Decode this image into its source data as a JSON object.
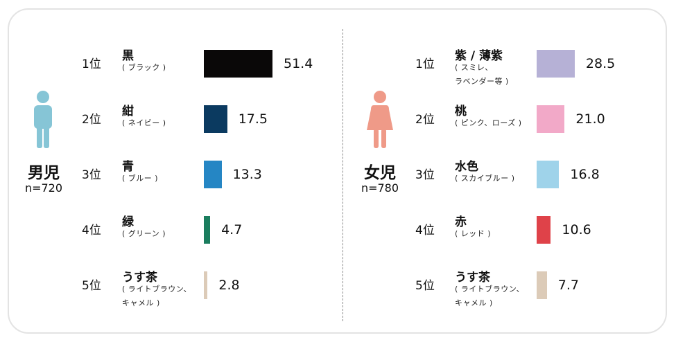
{
  "chart_data": [
    {
      "type": "bar",
      "gender": "男児",
      "n": "n=720",
      "icon_color": "#86c5d6",
      "max": 51.4,
      "items": [
        {
          "rank": "1位",
          "color_name": "黒",
          "sub": [
            "( ブラック )"
          ],
          "value": 51.4,
          "value_label": "51.4",
          "bar_color": "#0a0808"
        },
        {
          "rank": "2位",
          "color_name": "紺",
          "sub": [
            "( ネイビー )"
          ],
          "value": 17.5,
          "value_label": "17.5",
          "bar_color": "#0b3a60"
        },
        {
          "rank": "3位",
          "color_name": "青",
          "sub": [
            "( ブルー )"
          ],
          "value": 13.3,
          "value_label": "13.3",
          "bar_color": "#2586c4"
        },
        {
          "rank": "4位",
          "color_name": "緑",
          "sub": [
            "( グリーン )"
          ],
          "value": 4.7,
          "value_label": "4.7",
          "bar_color": "#1a7d5e"
        },
        {
          "rank": "5位",
          "color_name": "うす茶",
          "sub": [
            "( ライトブラウン、",
            "キャメル )"
          ],
          "value": 2.8,
          "value_label": "2.8",
          "bar_color": "#dccbb8"
        }
      ]
    },
    {
      "type": "bar",
      "gender": "女児",
      "n": "n=780",
      "icon_color": "#ef9a88",
      "max": 51.4,
      "items": [
        {
          "rank": "1位",
          "color_name": "紫 / 薄紫",
          "sub": [
            "( スミレ、",
            "ラベンダー等 )"
          ],
          "value": 28.5,
          "value_label": "28.5",
          "bar_color": "#b6b1d6"
        },
        {
          "rank": "2位",
          "color_name": "桃",
          "sub": [
            "( ピンク、ローズ )"
          ],
          "value": 21.0,
          "value_label": "21.0",
          "bar_color": "#f2a9c8"
        },
        {
          "rank": "3位",
          "color_name": "水色",
          "sub": [
            "( スカイブルー )"
          ],
          "value": 16.8,
          "value_label": "16.8",
          "bar_color": "#9fd3ea"
        },
        {
          "rank": "4位",
          "color_name": "赤",
          "sub": [
            "( レッド )"
          ],
          "value": 10.6,
          "value_label": "10.6",
          "bar_color": "#df4249"
        },
        {
          "rank": "5位",
          "color_name": "うす茶",
          "sub": [
            "( ライトブラウン、",
            "キャメル )"
          ],
          "value": 7.7,
          "value_label": "7.7",
          "bar_color": "#dccbb8"
        }
      ]
    }
  ]
}
